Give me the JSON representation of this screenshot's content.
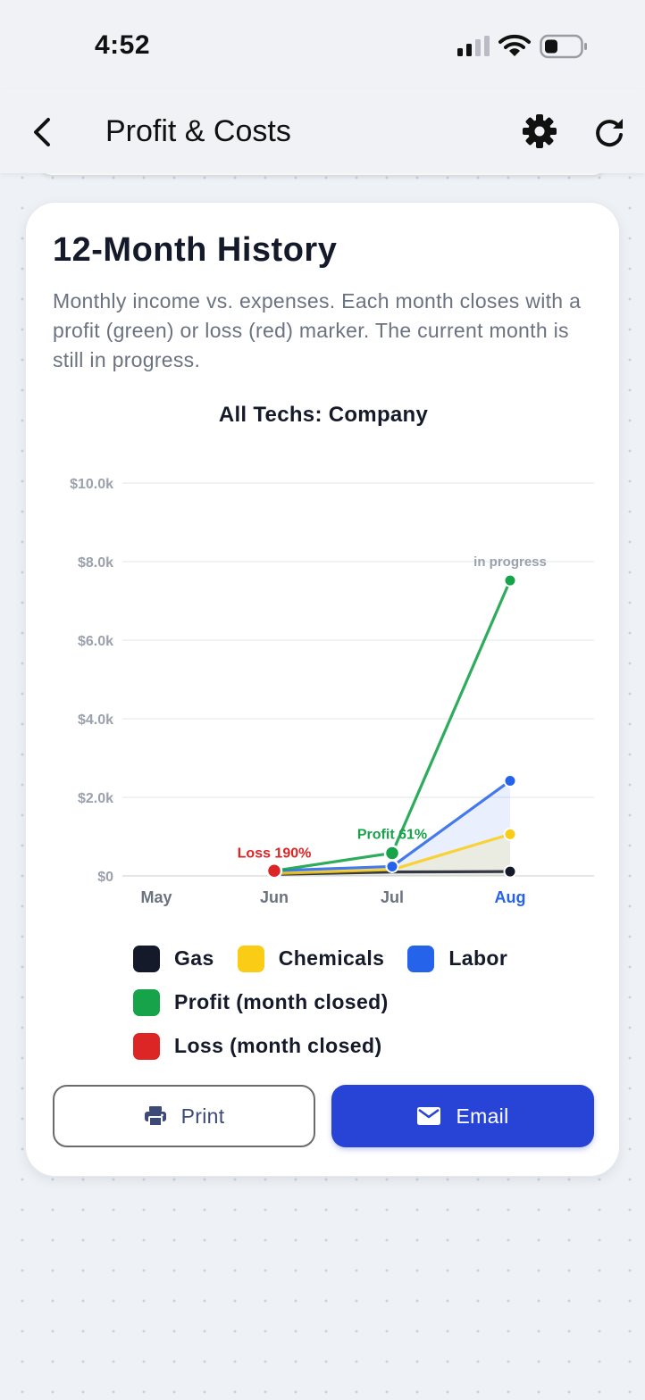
{
  "status": {
    "time": "4:52"
  },
  "nav": {
    "title": "Profit & Costs"
  },
  "card": {
    "title": "12-Month History",
    "description": "Monthly income vs. expenses. Each month closes with a profit (green) or loss (red) marker. The current month is still in progress."
  },
  "chart_data": {
    "type": "line",
    "title": "All Techs: Company",
    "categories": [
      "May",
      "Jun",
      "Jul",
      "Aug"
    ],
    "highlighted_category": "Aug",
    "ylim": [
      0,
      10000
    ],
    "y_ticks": [
      "$0",
      "$2.0k",
      "$4.0k",
      "$6.0k",
      "$8.0k",
      "$10.0k"
    ],
    "y_tick_values": [
      0,
      2000,
      4000,
      6000,
      8000,
      10000
    ],
    "grid": true,
    "series": [
      {
        "name": "Gas",
        "color": "#151a2a",
        "values": [
          null,
          40,
          100,
          110
        ]
      },
      {
        "name": "Chemicals",
        "color": "#facc15",
        "values": [
          null,
          60,
          160,
          1060
        ]
      },
      {
        "name": "Labor",
        "color": "#2563eb",
        "values": [
          null,
          130,
          240,
          2420
        ]
      },
      {
        "name": "Profit (month closed)",
        "color": "#16a34a",
        "values": [
          null,
          130,
          580,
          7520
        ]
      }
    ],
    "markers": [
      {
        "category": "Jun",
        "type": "loss",
        "value": 130,
        "label": "Loss 190%",
        "color": "#dc2626"
      },
      {
        "category": "Jul",
        "type": "profit",
        "value": 580,
        "label": "Profit 61%",
        "color": "#16a34a"
      }
    ],
    "annotations": [
      {
        "category": "Aug",
        "text": "in progress"
      }
    ]
  },
  "legend": {
    "rows": [
      [
        {
          "label": "Gas",
          "color": "#151a2a"
        },
        {
          "label": "Chemicals",
          "color": "#facc15"
        },
        {
          "label": "Labor",
          "color": "#2563eb"
        }
      ],
      [
        {
          "label": "Profit (month closed)",
          "color": "#16a34a"
        }
      ],
      [
        {
          "label": "Loss (month closed)",
          "color": "#dc2626"
        }
      ]
    ]
  },
  "buttons": {
    "print": {
      "label": "Print",
      "icon": "printer-icon"
    },
    "email": {
      "label": "Email",
      "icon": "mail-icon"
    }
  },
  "icons": {
    "back": "chevron-left-icon",
    "settings": "gear-icon",
    "refresh": "refresh-icon"
  }
}
